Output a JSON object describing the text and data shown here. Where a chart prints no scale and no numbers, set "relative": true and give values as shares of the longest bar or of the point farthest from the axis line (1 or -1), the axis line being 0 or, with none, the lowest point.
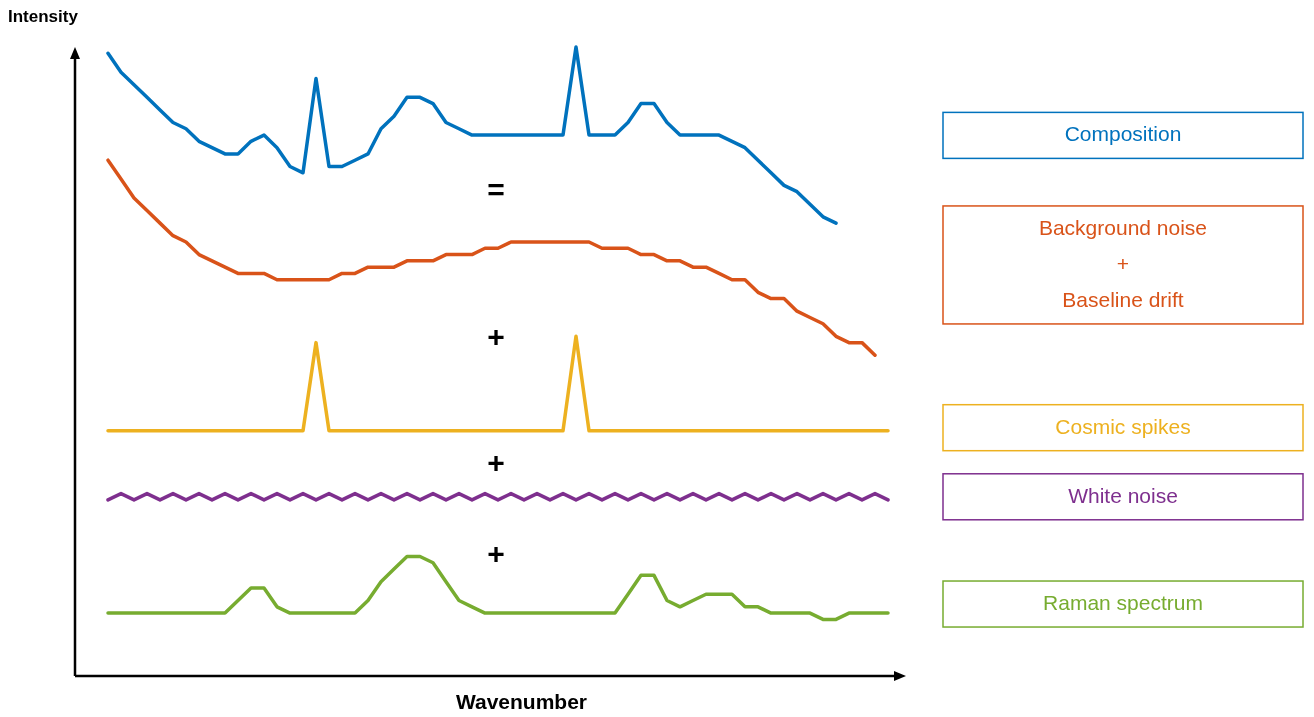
{
  "chart_data": {
    "type": "line",
    "relative": true,
    "xlabel": "Wavenumber",
    "ylabel": "Intensity",
    "legend": "right",
    "grid": false,
    "marker": "none",
    "line_style": "solid",
    "categories": [
      null,
      null,
      null,
      null,
      null,
      null,
      null,
      null,
      null,
      null,
      null,
      null,
      null,
      null,
      null,
      null,
      null,
      null,
      null,
      null,
      null,
      null,
      null,
      null,
      null,
      null,
      null,
      null,
      null,
      null,
      null,
      null,
      null,
      null,
      null,
      null,
      null,
      null,
      null,
      null,
      null,
      null,
      null,
      null,
      null,
      null,
      null,
      null,
      null,
      null,
      null,
      null,
      null,
      null,
      null,
      null,
      null,
      null,
      null,
      null,
      null
    ],
    "series": [
      {
        "name": "Composition",
        "color": "#0072bd",
        "values": [
          0.99,
          0.96,
          0.94,
          0.92,
          0.9,
          0.88,
          0.87,
          0.85,
          0.84,
          0.83,
          0.83,
          0.85,
          0.86,
          0.84,
          0.81,
          0.8,
          0.95,
          0.81,
          0.81,
          0.82,
          0.83,
          0.87,
          0.89,
          0.92,
          0.92,
          0.91,
          0.88,
          0.87,
          0.86,
          0.86,
          0.86,
          0.86,
          0.86,
          0.86,
          0.86,
          0.86,
          1,
          0.86,
          0.86,
          0.86,
          0.88,
          0.91,
          0.91,
          0.88,
          0.86,
          0.86,
          0.86,
          0.86,
          0.85,
          0.84,
          0.82,
          0.8,
          0.78,
          0.77,
          0.75,
          0.73,
          0.72,
          null,
          null,
          null,
          null
        ]
      },
      {
        "name": "Background noise\n+\nBaseline drift",
        "color": "#d95319",
        "values": [
          0.82,
          0.79,
          0.76,
          0.74,
          0.72,
          0.7,
          0.69,
          0.67,
          0.66,
          0.65,
          0.64,
          0.64,
          0.64,
          0.63,
          0.63,
          0.63,
          0.63,
          0.63,
          0.64,
          0.64,
          0.65,
          0.65,
          0.65,
          0.66,
          0.66,
          0.66,
          0.67,
          0.67,
          0.67,
          0.68,
          0.68,
          0.69,
          0.69,
          0.69,
          0.69,
          0.69,
          0.69,
          0.69,
          0.68,
          0.68,
          0.68,
          0.67,
          0.67,
          0.66,
          0.66,
          0.65,
          0.65,
          0.64,
          0.63,
          0.63,
          0.61,
          0.6,
          0.6,
          0.58,
          0.57,
          0.56,
          0.54,
          0.53,
          0.53,
          0.51,
          null
        ]
      },
      {
        "name": "Cosmic spikes",
        "color": "#edb120",
        "values": [
          0.39,
          0.39,
          0.39,
          0.39,
          0.39,
          0.39,
          0.39,
          0.39,
          0.39,
          0.39,
          0.39,
          0.39,
          0.39,
          0.39,
          0.39,
          0.39,
          0.53,
          0.39,
          0.39,
          0.39,
          0.39,
          0.39,
          0.39,
          0.39,
          0.39,
          0.39,
          0.39,
          0.39,
          0.39,
          0.39,
          0.39,
          0.39,
          0.39,
          0.39,
          0.39,
          0.39,
          0.54,
          0.39,
          0.39,
          0.39,
          0.39,
          0.39,
          0.39,
          0.39,
          0.39,
          0.39,
          0.39,
          0.39,
          0.39,
          0.39,
          0.39,
          0.39,
          0.39,
          0.39,
          0.39,
          0.39,
          0.39,
          0.39,
          0.39,
          0.39,
          0.39
        ]
      },
      {
        "name": "White noise",
        "color": "#7e2f8e",
        "values": [
          0.28,
          0.29,
          0.28,
          0.29,
          0.28,
          0.29,
          0.28,
          0.29,
          0.28,
          0.29,
          0.28,
          0.29,
          0.28,
          0.29,
          0.28,
          0.29,
          0.28,
          0.29,
          0.28,
          0.29,
          0.28,
          0.29,
          0.28,
          0.29,
          0.28,
          0.29,
          0.28,
          0.29,
          0.28,
          0.29,
          0.28,
          0.29,
          0.28,
          0.29,
          0.28,
          0.29,
          0.28,
          0.29,
          0.28,
          0.29,
          0.28,
          0.29,
          0.28,
          0.29,
          0.28,
          0.29,
          0.28,
          0.29,
          0.28,
          0.29,
          0.28,
          0.29,
          0.28,
          0.29,
          0.28,
          0.29,
          0.28,
          0.29,
          0.28,
          0.29,
          0.28
        ]
      },
      {
        "name": "Raman spectrum",
        "color": "#77ac30",
        "values": [
          0.1,
          0.1,
          0.1,
          0.1,
          0.1,
          0.1,
          0.1,
          0.1,
          0.1,
          0.1,
          0.12,
          0.14,
          0.14,
          0.11,
          0.1,
          0.1,
          0.1,
          0.1,
          0.1,
          0.1,
          0.12,
          0.15,
          0.17,
          0.19,
          0.19,
          0.18,
          0.15,
          0.12,
          0.11,
          0.1,
          0.1,
          0.1,
          0.1,
          0.1,
          0.1,
          0.1,
          0.1,
          0.1,
          0.1,
          0.1,
          0.13,
          0.16,
          0.16,
          0.12,
          0.11,
          0.12,
          0.13,
          0.13,
          0.13,
          0.11,
          0.11,
          0.1,
          0.1,
          0.1,
          0.1,
          0.09,
          0.09,
          0.1,
          0.1,
          0.1,
          0.1
        ]
      }
    ],
    "annotations": [
      "=",
      "+",
      "+",
      "+"
    ]
  }
}
